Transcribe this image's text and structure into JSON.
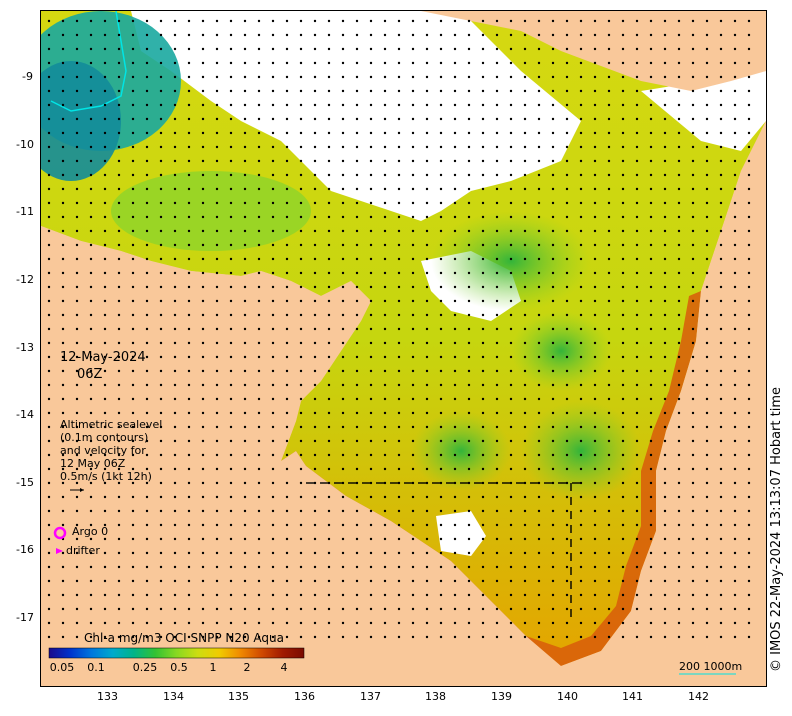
{
  "map": {
    "date": "12-May-2024",
    "time": "06Z",
    "legend_text": [
      "Altimetric sealevel",
      "(0.1m contours)",
      "and velocity for",
      "12 May 06Z",
      "0.5m/s (1kt 12h)"
    ],
    "argo_label": "Argo 0",
    "drifter_label": "drifter",
    "credit": "© IMOS 22-May-2024 13:13:07 Hobart time",
    "scale_label": "200  1000m",
    "colors": {
      "land": "#f9c89a",
      "nodata": "#ffffff",
      "argo": "#ff00ff",
      "drifter": "#ff00ff",
      "contour": "#00e5e5",
      "vector": "#000000"
    }
  },
  "axes": {
    "x_ticks": [
      "133",
      "134",
      "135",
      "136",
      "137",
      "138",
      "139",
      "140",
      "141",
      "142"
    ],
    "y_ticks": [
      "-9",
      "-10",
      "-11",
      "-12",
      "-13",
      "-14",
      "-15",
      "-16",
      "-17"
    ]
  },
  "colorbar": {
    "title": "Chl-a mg/m3 OCI SNPP N20 Aqua",
    "ticks": [
      "0.05",
      "0.1",
      "0.25",
      "0.5",
      "1",
      "2",
      "4"
    ],
    "stops": [
      "#1a0a8c",
      "#0033cc",
      "#0077dd",
      "#00aacc",
      "#00b488",
      "#33c233",
      "#88d822",
      "#ccdd11",
      "#f0cc00",
      "#f08a00",
      "#d04a00",
      "#a01a00",
      "#7a0a00"
    ]
  }
}
